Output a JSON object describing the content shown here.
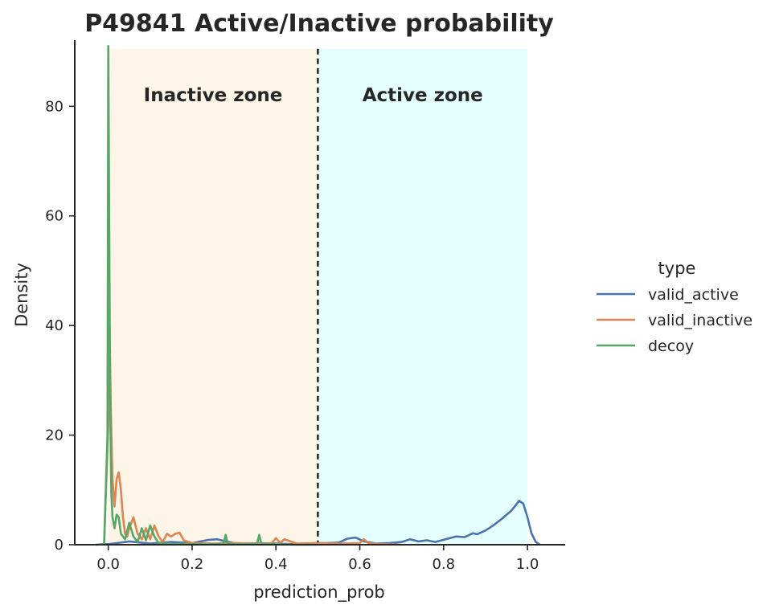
{
  "chart_data": {
    "type": "line",
    "subtype": "kde-density",
    "title": "P49841  Active/Inactive probability",
    "xlabel": "prediction_prob",
    "ylabel": "Density",
    "xlim": [
      -0.08,
      1.09
    ],
    "ylim": [
      0,
      95
    ],
    "xticks": [
      0.0,
      0.2,
      0.4,
      0.6,
      0.8,
      1.0
    ],
    "xtick_labels": [
      "0.0",
      "0.2",
      "0.4",
      "0.6",
      "0.8",
      "1.0"
    ],
    "yticks": [
      0,
      20,
      40,
      60,
      80
    ],
    "ytick_labels": [
      "0",
      "20",
      "40",
      "60",
      "80"
    ],
    "threshold": 0.5,
    "zones": [
      {
        "name": "inactive",
        "label": "Inactive zone",
        "x_from": 0.0,
        "x_to": 0.5,
        "y_to": 90.5,
        "color": "#fdf5e8"
      },
      {
        "name": "active",
        "label": "Active zone",
        "x_from": 0.5,
        "x_to": 1.0,
        "y_to": 90.5,
        "color": "#e3fffe"
      }
    ],
    "legend": {
      "title": "type",
      "position": "right"
    },
    "series": [
      {
        "name": "valid_active",
        "color": "#4c72b0",
        "x": [
          -0.03,
          0.0,
          0.02,
          0.05,
          0.1,
          0.15,
          0.2,
          0.24,
          0.26,
          0.28,
          0.3,
          0.33,
          0.36,
          0.4,
          0.44,
          0.47,
          0.5,
          0.52,
          0.55,
          0.57,
          0.59,
          0.61,
          0.64,
          0.67,
          0.7,
          0.72,
          0.74,
          0.76,
          0.78,
          0.8,
          0.83,
          0.85,
          0.87,
          0.88,
          0.9,
          0.92,
          0.94,
          0.96,
          0.97,
          0.98,
          0.99,
          1.0,
          1.01,
          1.02,
          1.03
        ],
        "values": [
          0.0,
          0.1,
          0.3,
          0.6,
          0.2,
          0.5,
          0.3,
          0.9,
          1.0,
          0.6,
          0.3,
          0.2,
          0.3,
          0.2,
          0.1,
          0.2,
          0.3,
          0.3,
          0.4,
          1.1,
          1.3,
          0.6,
          0.2,
          0.3,
          0.5,
          1.0,
          0.6,
          0.8,
          0.5,
          0.9,
          1.5,
          1.4,
          2.1,
          1.9,
          2.6,
          3.6,
          4.8,
          6.1,
          7.0,
          8.0,
          7.5,
          5.0,
          2.0,
          0.5,
          0.0
        ]
      },
      {
        "name": "valid_inactive",
        "color": "#dd8452",
        "x": [
          -0.01,
          0.0,
          0.002,
          0.006,
          0.01,
          0.015,
          0.02,
          0.025,
          0.03,
          0.035,
          0.04,
          0.045,
          0.05,
          0.06,
          0.07,
          0.08,
          0.09,
          0.1,
          0.11,
          0.12,
          0.13,
          0.14,
          0.15,
          0.16,
          0.17,
          0.18,
          0.2,
          0.25,
          0.3,
          0.35,
          0.39,
          0.4,
          0.41,
          0.42,
          0.45,
          0.5,
          0.55,
          0.6,
          0.61,
          0.62,
          0.65,
          0.7
        ],
        "values": [
          0.0,
          22.0,
          45.5,
          25.0,
          12.0,
          7.0,
          12.0,
          13.2,
          10.0,
          5.0,
          2.0,
          1.5,
          3.0,
          5.0,
          2.0,
          1.0,
          3.0,
          1.0,
          3.5,
          1.5,
          0.5,
          2.0,
          1.5,
          2.0,
          2.2,
          0.8,
          0.3,
          0.2,
          0.3,
          0.2,
          0.3,
          1.2,
          0.3,
          1.0,
          0.2,
          0.3,
          0.2,
          0.3,
          1.0,
          0.3,
          0.1,
          0.0
        ]
      },
      {
        "name": "decoy",
        "color": "#55a868",
        "x": [
          -0.01,
          -0.002,
          0.0,
          0.002,
          0.004,
          0.007,
          0.01,
          0.015,
          0.02,
          0.025,
          0.03,
          0.04,
          0.05,
          0.06,
          0.07,
          0.08,
          0.09,
          0.1,
          0.11,
          0.12,
          0.14,
          0.16,
          0.18,
          0.2,
          0.25,
          0.275,
          0.28,
          0.285,
          0.3,
          0.35,
          0.355,
          0.36,
          0.365,
          0.4,
          0.45,
          0.5
        ],
        "values": [
          0.0,
          20.0,
          91.0,
          60.0,
          30.0,
          10.0,
          5.0,
          3.0,
          5.5,
          5.0,
          2.0,
          1.0,
          4.0,
          1.5,
          0.5,
          3.0,
          0.8,
          3.5,
          1.5,
          0.3,
          0.2,
          0.1,
          0.2,
          0.1,
          0.1,
          0.2,
          1.8,
          0.2,
          0.1,
          0.1,
          0.2,
          1.8,
          0.2,
          0.1,
          0.0,
          0.0
        ]
      }
    ]
  }
}
